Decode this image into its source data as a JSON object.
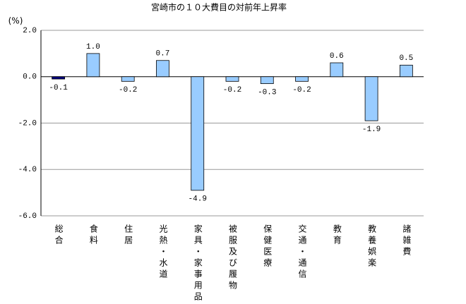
{
  "chart_data": {
    "type": "bar",
    "title": "宮崎市の１０大費目の対前年上昇率",
    "y_unit": "(%)",
    "categories": [
      "総合",
      "食料",
      "住居",
      "光熱・水道",
      "家具・家事用品",
      "被服及び履物",
      "保健医療",
      "交通・通信",
      "教育",
      "教養娯楽",
      "諸雑費"
    ],
    "values": [
      -0.1,
      1.0,
      -0.2,
      0.7,
      -4.9,
      -0.2,
      -0.3,
      -0.2,
      0.6,
      -1.9,
      0.5
    ],
    "value_labels": [
      "-0.1",
      "1.0",
      "-0.2",
      "0.7",
      "-4.9",
      "-0.2",
      "-0.3",
      "-0.2",
      "0.6",
      "-1.9",
      "0.5"
    ],
    "colors": [
      "#000080",
      "#99ccff",
      "#99ccff",
      "#99ccff",
      "#99ccff",
      "#99ccff",
      "#99ccff",
      "#99ccff",
      "#99ccff",
      "#99ccff",
      "#99ccff"
    ],
    "ylim": [
      -6,
      2
    ],
    "yticks": [
      {
        "value": -6,
        "label": "-6.0"
      },
      {
        "value": -4,
        "label": "-4.0"
      },
      {
        "value": -2,
        "label": "-2.0"
      },
      {
        "value": 0,
        "label": "0.0"
      },
      {
        "value": 2,
        "label": "2.0"
      }
    ],
    "grid": true
  }
}
